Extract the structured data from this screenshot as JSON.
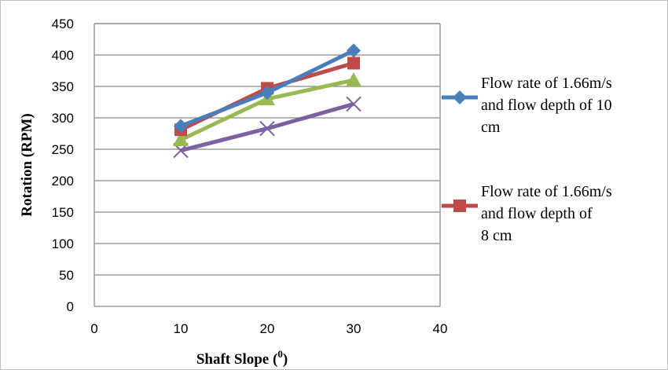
{
  "chart_data": {
    "type": "line",
    "title": "",
    "xlabel": "Shaft Slope (",
    "xlabel_sup": "0",
    "xlabel_close": ")",
    "ylabel": "Rotation (RPM)",
    "xlim": [
      0,
      40
    ],
    "ylim": [
      0,
      450
    ],
    "xticks": [
      "0",
      "10",
      "20",
      "30",
      "40"
    ],
    "yticks": [
      "0",
      "50",
      "100",
      "150",
      "200",
      "250",
      "300",
      "350",
      "400",
      "450"
    ],
    "x": [
      10,
      20,
      30
    ],
    "grid": true,
    "legend_position": "right",
    "series": [
      {
        "name": "Flow rate of 1.66m/s and flow depth of  10 cm",
        "legend_lines": [
          "Flow rate of 1.66m/s",
          "and flow depth of  10",
          "cm"
        ],
        "values": [
          287,
          340,
          407
        ],
        "color": "#4a7ebb",
        "marker": "diamond"
      },
      {
        "name": "Flow rate of 1.66m/s and flow depth of 8 cm",
        "legend_lines": [
          "Flow rate of 1.66m/s",
          "and flow depth of",
          "8 cm"
        ],
        "values": [
          281,
          347,
          387
        ],
        "color": "#be4b48",
        "marker": "square"
      },
      {
        "values": [
          265,
          330,
          360
        ],
        "color": "#98b954",
        "marker": "triangle"
      },
      {
        "values": [
          248,
          283,
          322
        ],
        "color": "#7d60a0",
        "marker": "x"
      }
    ]
  }
}
